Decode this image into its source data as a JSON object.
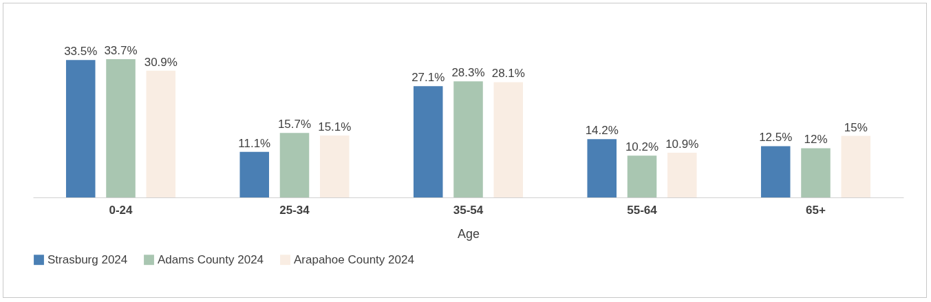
{
  "chart_data": {
    "type": "bar",
    "xlabel": "Age",
    "categories": [
      "0-24",
      "25-34",
      "35-54",
      "55-64",
      "65+"
    ],
    "series": [
      {
        "name": "Strasburg 2024",
        "color": "#4a7fb4",
        "values": [
          33.5,
          11.1,
          27.1,
          14.2,
          12.5
        ],
        "value_labels": [
          "33.5%",
          "11.1%",
          "27.1%",
          "14.2%",
          "12.5%"
        ]
      },
      {
        "name": "Adams County 2024",
        "color": "#a9c6b1",
        "values": [
          33.7,
          15.7,
          28.3,
          10.2,
          12
        ],
        "value_labels": [
          "33.7%",
          "15.7%",
          "28.3%",
          "10.2%",
          "12%"
        ]
      },
      {
        "name": "Arapahoe County 2024",
        "color": "#f9ede3",
        "values": [
          30.9,
          15.1,
          28.1,
          10.9,
          15
        ],
        "value_labels": [
          "30.9%",
          "15.1%",
          "28.1%",
          "10.9%",
          "15%"
        ]
      }
    ],
    "legend": "bottom",
    "grid": false
  }
}
